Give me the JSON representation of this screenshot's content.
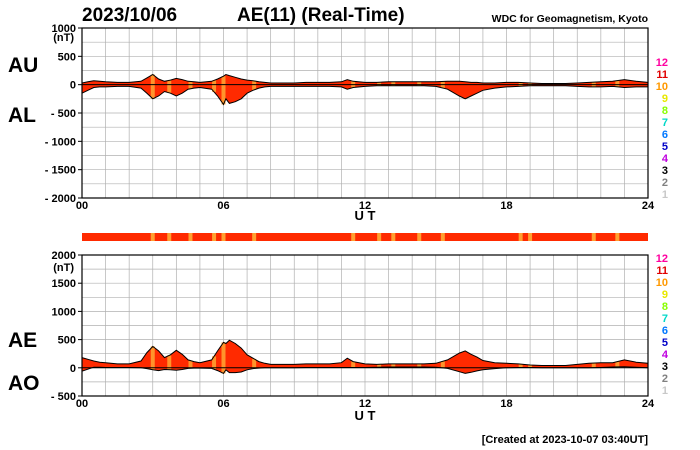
{
  "header": {
    "date": "2023/10/06",
    "title": "AE(11) (Real-Time)",
    "source": "WDC for Geomagnetism, Kyoto"
  },
  "footer": {
    "created": "[Created at 2023-10-07 03:40UT]"
  },
  "colors": {
    "fill": "#ff2a00",
    "outline": "#000000",
    "grid": "#b0b0b0",
    "stations_bar": "#ff2a00",
    "low_station_mark": "#ffa030"
  },
  "station_scale": {
    "labels": [
      "12",
      "11",
      "10",
      "9",
      "8",
      "7",
      "6",
      "5",
      "4",
      "3",
      "2",
      "1"
    ],
    "colors": [
      "#ff00a0",
      "#e00000",
      "#ff9900",
      "#e8e800",
      "#88ff00",
      "#00d8c8",
      "#0077ff",
      "#0000c8",
      "#c000e0",
      "#000000",
      "#808080",
      "#c8c8c8"
    ]
  },
  "chart_data": [
    {
      "type": "area",
      "series_labels": [
        "AU",
        "AL"
      ],
      "ylabel": "(nT)",
      "xlabel": "U T",
      "xlim": [
        0,
        24
      ],
      "ylim": [
        -2000,
        1000
      ],
      "xticks": [
        "00",
        "06",
        "12",
        "18",
        "24"
      ],
      "yticks": [
        "1000",
        "500",
        "0",
        "- 500",
        "- 1000",
        "- 1500",
        "- 2000"
      ],
      "grid": true,
      "x": [
        0,
        0.25,
        0.5,
        0.75,
        1,
        1.5,
        2,
        2.5,
        2.75,
        3,
        3.25,
        3.5,
        3.75,
        4,
        4.25,
        4.5,
        4.75,
        5,
        5.5,
        5.75,
        6,
        6.1,
        6.25,
        6.5,
        6.75,
        7,
        7.25,
        7.5,
        7.75,
        8,
        8.5,
        9,
        9.5,
        10,
        10.5,
        11,
        11.25,
        11.5,
        12,
        12.5,
        13,
        13.5,
        14,
        14.5,
        15,
        15.5,
        16,
        16.25,
        16.5,
        16.75,
        17,
        17.5,
        18,
        18.5,
        19,
        19.5,
        20,
        20.5,
        21,
        21.5,
        22,
        22.5,
        23,
        23.5,
        24
      ],
      "au": [
        30,
        50,
        70,
        60,
        50,
        40,
        40,
        60,
        120,
        180,
        100,
        60,
        80,
        110,
        90,
        60,
        50,
        40,
        60,
        100,
        150,
        180,
        160,
        130,
        100,
        80,
        70,
        50,
        40,
        30,
        30,
        30,
        40,
        40,
        40,
        50,
        90,
        60,
        40,
        40,
        50,
        50,
        50,
        50,
        50,
        60,
        60,
        50,
        40,
        40,
        30,
        30,
        40,
        40,
        30,
        20,
        20,
        20,
        30,
        40,
        50,
        60,
        90,
        60,
        40
      ],
      "al": [
        -150,
        -100,
        -50,
        -40,
        -40,
        -30,
        -30,
        -60,
        -150,
        -250,
        -200,
        -120,
        -150,
        -200,
        -150,
        -80,
        -60,
        -50,
        -80,
        -200,
        -350,
        -250,
        -330,
        -300,
        -250,
        -150,
        -100,
        -60,
        -40,
        -30,
        -30,
        -30,
        -30,
        -30,
        -30,
        -40,
        -80,
        -50,
        -30,
        -20,
        -20,
        -20,
        -20,
        -20,
        -30,
        -80,
        -200,
        -250,
        -200,
        -150,
        -100,
        -60,
        -40,
        -30,
        -20,
        -20,
        -20,
        -20,
        -30,
        -40,
        -40,
        -30,
        -50,
        -40,
        -40
      ],
      "low_station_marks_hours": [
        3.0,
        3.7,
        4.6,
        5.6,
        6.0,
        7.3,
        11.5,
        12.6,
        13.2,
        14.3,
        15.3,
        18.6,
        19.0,
        21.7,
        22.7
      ],
      "low_station_mark_color": "#ffa030"
    },
    {
      "type": "area",
      "series_labels": [
        "AE",
        "AO"
      ],
      "ylabel": "(nT)",
      "xlabel": "U T",
      "xlim": [
        0,
        24
      ],
      "ylim": [
        -500,
        2000
      ],
      "xticks": [
        "00",
        "06",
        "12",
        "18",
        "24"
      ],
      "yticks": [
        "2000",
        "1500",
        "1000",
        "500",
        "0",
        "- 500"
      ],
      "grid": true,
      "x": [
        0,
        0.25,
        0.5,
        0.75,
        1,
        1.5,
        2,
        2.5,
        2.75,
        3,
        3.25,
        3.5,
        3.75,
        4,
        4.25,
        4.5,
        4.75,
        5,
        5.5,
        5.75,
        6,
        6.1,
        6.25,
        6.5,
        6.75,
        7,
        7.25,
        7.5,
        7.75,
        8,
        8.5,
        9,
        9.5,
        10,
        10.5,
        11,
        11.25,
        11.5,
        12,
        12.5,
        13,
        13.5,
        14,
        14.5,
        15,
        15.5,
        16,
        16.25,
        16.5,
        16.75,
        17,
        17.5,
        18,
        18.5,
        19,
        19.5,
        20,
        20.5,
        21,
        21.5,
        22,
        22.5,
        23,
        23.5,
        24
      ],
      "ae": [
        180,
        150,
        120,
        100,
        90,
        70,
        70,
        120,
        270,
        380,
        300,
        180,
        230,
        310,
        240,
        140,
        110,
        90,
        140,
        300,
        450,
        430,
        490,
        430,
        350,
        230,
        170,
        110,
        80,
        60,
        60,
        60,
        70,
        70,
        70,
        90,
        170,
        110,
        70,
        60,
        70,
        70,
        70,
        70,
        80,
        140,
        260,
        300,
        240,
        190,
        130,
        90,
        80,
        70,
        50,
        40,
        40,
        40,
        60,
        80,
        90,
        90,
        140,
        100,
        80
      ],
      "ao": [
        -60,
        -25,
        10,
        10,
        5,
        5,
        5,
        0,
        -15,
        -35,
        -50,
        -30,
        -35,
        -45,
        -30,
        -10,
        -5,
        -5,
        -10,
        -50,
        -100,
        -35,
        -85,
        -85,
        -75,
        -35,
        -15,
        -5,
        0,
        0,
        0,
        0,
        5,
        5,
        5,
        5,
        5,
        5,
        5,
        10,
        15,
        15,
        15,
        15,
        10,
        -10,
        -70,
        -100,
        -80,
        -55,
        -35,
        -15,
        0,
        5,
        5,
        0,
        0,
        0,
        0,
        0,
        5,
        15,
        20,
        10,
        0
      ],
      "low_station_marks_hours": [
        3.0,
        3.7,
        4.6,
        5.6,
        6.0,
        7.3,
        11.5,
        12.6,
        13.2,
        14.3,
        15.3,
        18.6,
        19.0,
        21.7,
        22.7
      ],
      "low_station_mark_color": "#ffa030"
    }
  ]
}
